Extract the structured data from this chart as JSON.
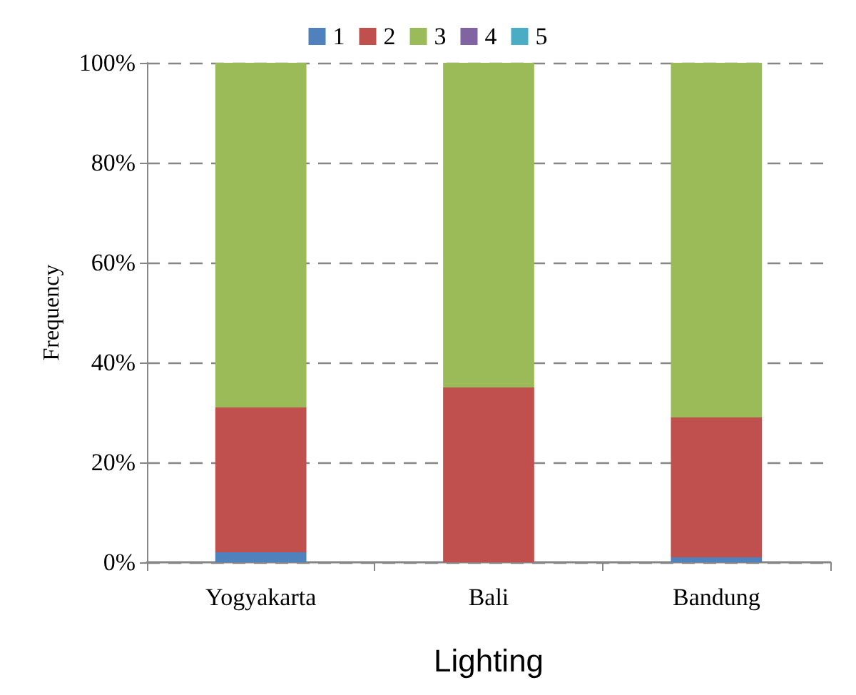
{
  "chart_data": {
    "type": "bar",
    "stacked": true,
    "xlabel": "Lighting",
    "ylabel": "Frequency",
    "categories": [
      "Yogyakarta",
      "Bali",
      "Bandung"
    ],
    "series": [
      {
        "name": "1",
        "color": "#4f81bd",
        "values": [
          2,
          0,
          1
        ]
      },
      {
        "name": "2",
        "color": "#c0504d",
        "values": [
          29,
          35,
          28
        ]
      },
      {
        "name": "3",
        "color": "#9bbb59",
        "values": [
          69,
          65,
          71
        ]
      },
      {
        "name": "4",
        "color": "#8064a2",
        "values": [
          0,
          0,
          0
        ]
      },
      {
        "name": "5",
        "color": "#4bacc6",
        "values": [
          0,
          0,
          0
        ]
      }
    ],
    "ylim": [
      0,
      100
    ],
    "yticks": [
      {
        "value": 0,
        "label": "0%"
      },
      {
        "value": 20,
        "label": "20%"
      },
      {
        "value": 40,
        "label": "40%"
      },
      {
        "value": 60,
        "label": "60%"
      },
      {
        "value": 80,
        "label": "80%"
      },
      {
        "value": 100,
        "label": "100%"
      }
    ],
    "grid": "y",
    "legend": "top"
  }
}
